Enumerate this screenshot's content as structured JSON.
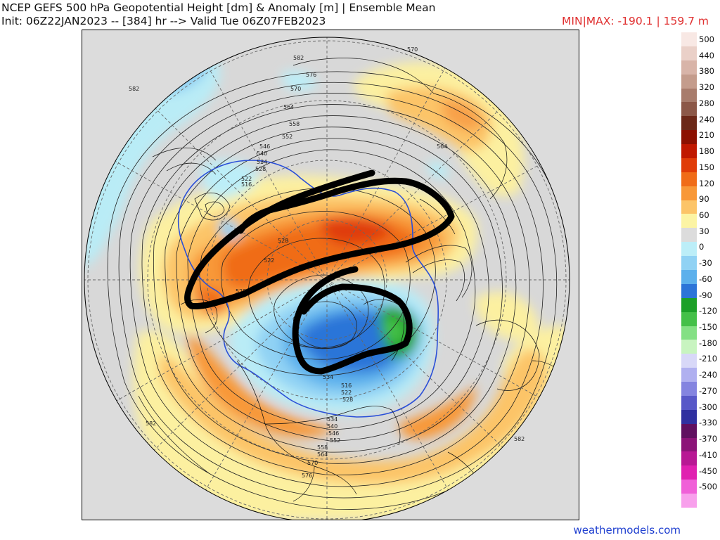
{
  "header": {
    "title": "NCEP GEFS 500 hPa Geopotential Height [dm] & Anomaly [m] | Ensemble Mean",
    "init": "Init: 06Z22JAN2023 -- [384] hr --> Valid Tue 06Z07FEB2023",
    "minmax": "MIN|MAX: -190.1 | 159.7 m"
  },
  "credit": "weathermodels.com",
  "colorbar": {
    "labels": [
      "500",
      "440",
      "380",
      "320",
      "280",
      "240",
      "210",
      "180",
      "150",
      "120",
      "90",
      "60",
      "30",
      "0",
      "-30",
      "-60",
      "-90",
      "-120",
      "-150",
      "-180",
      "-210",
      "-240",
      "-270",
      "-300",
      "-330",
      "-370",
      "-410",
      "-450",
      "-500"
    ],
    "colors": [
      "#f8e8e4",
      "#ead0c8",
      "#d8b4a8",
      "#c49c8c",
      "#a87c6c",
      "#8c5848",
      "#6c2818",
      "#8c1000",
      "#c01800",
      "#e03c08",
      "#f06c18",
      "#f89838",
      "#fcc468",
      "#fcf4a4",
      "#dcdcdc",
      "#bceef8",
      "#90d2f4",
      "#5cb0ec",
      "#2c74d8",
      "#1ca028",
      "#44c048",
      "#84e084",
      "#c8f4c0",
      "#d8d8f8",
      "#b0b0f0",
      "#8484e0",
      "#5858c8",
      "#3030a0",
      "#601060",
      "#8c1478",
      "#b81894",
      "#e020b0",
      "#f060d8",
      "#f8a0ec"
    ]
  },
  "contour_labels": [
    "582",
    "576",
    "570",
    "564",
    "558",
    "552",
    "546",
    "540",
    "534",
    "528",
    "522",
    "516",
    "582",
    "582",
    "582",
    "570",
    "564",
    "528",
    "522",
    "528",
    "534",
    "516",
    "522",
    "528",
    "534",
    "540",
    "546",
    "552",
    "558",
    "564",
    "570",
    "576"
  ],
  "map": {
    "projection": "north polar stereographic",
    "height_contours_dm": [
      516,
      522,
      528,
      534,
      540,
      546,
      552,
      558,
      564,
      570,
      576,
      582
    ],
    "highlighted_contour_color": "#2a4fd8"
  }
}
